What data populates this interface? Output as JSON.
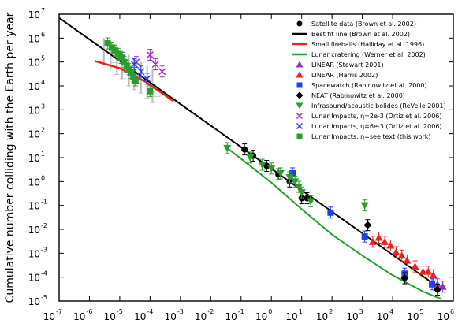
{
  "chart_data": {
    "type": "scatter",
    "title": "",
    "xlabel": "",
    "ylabel": "Cumulative number colliding with the Earth per year",
    "x_scale": "log",
    "y_scale": "log",
    "xlim": [
      1e-07,
      1000000.0
    ],
    "ylim": [
      1e-05,
      10000000.0
    ],
    "x_ticks": [
      {
        "base": "10",
        "exp": "-7"
      },
      {
        "base": "10",
        "exp": "-6"
      },
      {
        "base": "10",
        "exp": "-5"
      },
      {
        "base": "10",
        "exp": "-4"
      },
      {
        "base": "10",
        "exp": "-3"
      },
      {
        "base": "10",
        "exp": "-2"
      },
      {
        "base": "10",
        "exp": "-1"
      },
      {
        "base": "10",
        "exp": "0"
      },
      {
        "base": "10",
        "exp": "1"
      },
      {
        "base": "10",
        "exp": "2"
      },
      {
        "base": "10",
        "exp": "3"
      },
      {
        "base": "10",
        "exp": "4"
      },
      {
        "base": "10",
        "exp": "5"
      },
      {
        "base": "10",
        "exp": "6"
      }
    ],
    "y_ticks": [
      {
        "base": "10",
        "exp": "7"
      },
      {
        "base": "10",
        "exp": "6"
      },
      {
        "base": "10",
        "exp": "5"
      },
      {
        "base": "10",
        "exp": "4"
      },
      {
        "base": "10",
        "exp": "3"
      },
      {
        "base": "10",
        "exp": "2"
      },
      {
        "base": "10",
        "exp": "1"
      },
      {
        "base": "10",
        "exp": "0"
      },
      {
        "base": "10",
        "exp": "-1"
      },
      {
        "base": "10",
        "exp": "-2"
      },
      {
        "base": "10",
        "exp": "-3"
      },
      {
        "base": "10",
        "exp": "-4"
      },
      {
        "base": "10",
        "exp": "-5"
      }
    ],
    "legend_position": "top-right",
    "grid": false,
    "series": [
      {
        "name": "Satellite data (Brown et al. 2002)",
        "kind": "marker",
        "marker": "circle",
        "color": "#000000",
        "x": [
          0.13,
          0.25,
          0.7,
          1.7,
          4,
          10,
          15
        ],
        "y": [
          22,
          12,
          4.5,
          2,
          1,
          0.2,
          0.2
        ]
      },
      {
        "name": "Best fit line (Brown et al. 2002)",
        "kind": "line",
        "color": "#000000",
        "x": [
          1e-07,
          300000.0
        ],
        "y": [
          7000000.0,
          4e-05
        ]
      },
      {
        "name": "Small fireballs (Halliday et al. 1996)",
        "kind": "line",
        "color": "#e8231c",
        "x": [
          1.5e-06,
          1e-05,
          7e-05,
          0.0006
        ],
        "y": [
          110000.0,
          55000.0,
          15000.0,
          2300.0
        ]
      },
      {
        "name": "Lunar cratering (Werner et al. 2002)",
        "kind": "line",
        "color": "#2a9d2a",
        "x": [
          0.035,
          0.1,
          1,
          10,
          100,
          1000,
          10000.0,
          100000.0,
          400000.0
        ],
        "y": [
          25,
          9,
          0.9,
          0.07,
          0.006,
          0.0008,
          0.00012,
          2.5e-05,
          1.2e-05
        ]
      },
      {
        "name": "LINEAR (Stewart 2001)",
        "kind": "marker",
        "marker": "triangle-up",
        "color": "#9b2fbf",
        "x": [
          300000.0,
          450000.0
        ],
        "y": [
          5e-05,
          4e-05
        ]
      },
      {
        "name": "LINEAR (Harris 2002)",
        "kind": "marker",
        "marker": "triangle-up",
        "color": "#e8231c",
        "x": [
          2200,
          3500,
          5500,
          8500,
          13000,
          20000.0,
          30000.0,
          55000.0,
          100000.0,
          150000.0,
          220000.0
        ],
        "y": [
          0.003,
          0.0045,
          0.003,
          0.0021,
          0.0011,
          0.0008,
          0.0005,
          0.00028,
          0.00017,
          0.00017,
          0.00012
        ]
      },
      {
        "name": "Spacewatch (Rabinowitz et al. 2000)",
        "kind": "marker",
        "marker": "square",
        "color": "#1f3fe8",
        "x": [
          5,
          90,
          1200,
          25000.0,
          200000.0
        ],
        "y": [
          2.2,
          0.05,
          0.005,
          0.00014,
          5e-05
        ]
      },
      {
        "name": "NEAT (Rabinowitz et al. 2000)",
        "kind": "marker",
        "marker": "diamond",
        "color": "#000000",
        "x": [
          1500,
          25000.0,
          300000.0
        ],
        "y": [
          0.015,
          9e-05,
          3e-05
        ]
      },
      {
        "name": "Infrasound/acoustic bolides (ReVelle 2001)",
        "kind": "marker",
        "marker": "triangle-down",
        "color": "#2a9d2a",
        "x": [
          0.035,
          0.2,
          0.5,
          1,
          2,
          4,
          6,
          8,
          10,
          20,
          1200
        ],
        "y": [
          25,
          10,
          5,
          3.5,
          2.2,
          1.5,
          1,
          0.6,
          0.35,
          0.15,
          0.1
        ]
      },
      {
        "name": "Lunar Impacts, η=2e-3 (Ortiz et al. 2006)",
        "kind": "marker",
        "marker": "x",
        "color": "#9b2fbf",
        "x": [
          3.5e-05,
          0.0001,
          0.00015,
          0.00025
        ],
        "y": [
          100000.0,
          200000.0,
          80000.0,
          40000.0
        ]
      },
      {
        "name": "Lunar Impacts, η=6e-3 (Ortiz et al. 2006)",
        "kind": "marker",
        "marker": "x",
        "color": "#1f3fe8",
        "x": [
          1.2e-05,
          3e-05,
          5e-05,
          8e-05
        ],
        "y": [
          150000.0,
          80000.0,
          40000.0,
          20000.0
        ]
      },
      {
        "name": "Lunar Impacts, η=see text (this work)",
        "kind": "marker",
        "marker": "square",
        "color": "#2a9d2a",
        "x": [
          4e-06,
          5.5e-06,
          7e-06,
          9e-06,
          1.1e-05,
          1.4e-05,
          1.7e-05,
          2e-05,
          2.4e-05,
          2.8e-05,
          3.3e-05,
          0.0001
        ],
        "y": [
          600000.0,
          400000.0,
          300000.0,
          220000.0,
          150000.0,
          100000.0,
          70000.0,
          50000.0,
          35000.0,
          25000.0,
          17000.0,
          6000.0
        ]
      },
      {
        "name": "",
        "kind": "errorband",
        "color": "#bdbdbd",
        "x": [
          3e-06,
          5e-06,
          8e-06,
          1.2e-05,
          2e-05,
          3e-05,
          5e-05,
          8e-05,
          0.00012
        ],
        "y_low": [
          80000.0,
          50000.0,
          30000.0,
          20000.0,
          10000.0,
          7000.0,
          5000.0,
          3000.0,
          2000.0
        ],
        "y_high": [
          1000000.0,
          700000.0,
          500000.0,
          300000.0,
          200000.0,
          150000.0,
          100000.0,
          70000.0,
          50000.0
        ]
      }
    ]
  }
}
